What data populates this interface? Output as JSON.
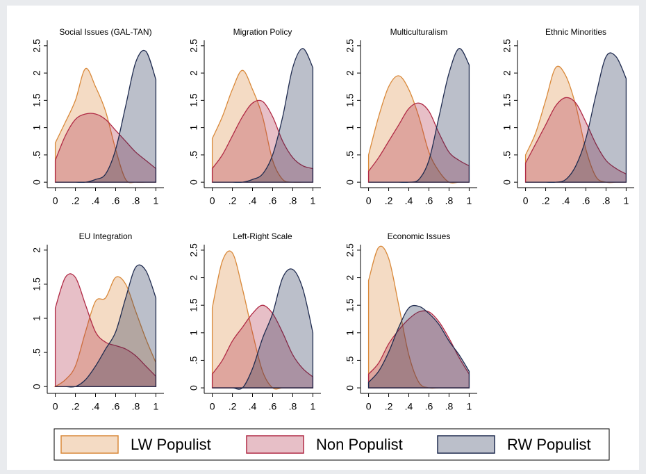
{
  "chart_data": [
    {
      "type": "area",
      "title": "Social Issues (GAL-TAN)",
      "x": [
        0,
        0.1,
        0.2,
        0.3,
        0.4,
        0.5,
        0.6,
        0.7,
        0.8,
        0.9,
        1
      ],
      "xlim": [
        -0.08,
        1.08
      ],
      "ylim": [
        -0.1,
        2.6
      ],
      "xticks": [
        0,
        {
          "value": 0.2,
          "label": ".2"
        },
        {
          "value": 0.4,
          "label": ".4"
        },
        {
          "value": 0.6,
          "label": ".6"
        },
        {
          "value": 0.8,
          "label": ".8"
        },
        1
      ],
      "yticks": [
        0,
        {
          "value": 0.5,
          "label": ".5"
        },
        1,
        1.5,
        2,
        2.5
      ],
      "series": [
        {
          "name": "LW Populist",
          "color": "#d9893a",
          "values": [
            0.72,
            1.1,
            1.5,
            2.08,
            1.75,
            1.3,
            0.6,
            0.05,
            0,
            0,
            0
          ]
        },
        {
          "name": "Non Populist",
          "color": "#b02a45",
          "values": [
            0.4,
            0.85,
            1.15,
            1.25,
            1.25,
            1.15,
            0.95,
            0.75,
            0.55,
            0.4,
            0.25
          ]
        },
        {
          "name": "RW Populist",
          "color": "#1f2b4f",
          "values": [
            0,
            0,
            0,
            0,
            0.05,
            0.15,
            0.6,
            1.4,
            2.2,
            2.4,
            1.88
          ]
        }
      ]
    },
    {
      "type": "area",
      "title": "Migration Policy",
      "x": [
        0,
        0.1,
        0.2,
        0.3,
        0.4,
        0.5,
        0.6,
        0.7,
        0.8,
        0.9,
        1
      ],
      "xlim": [
        -0.08,
        1.08
      ],
      "ylim": [
        -0.1,
        2.6
      ],
      "xticks": [
        0,
        {
          "value": 0.2,
          "label": ".2"
        },
        {
          "value": 0.4,
          "label": ".4"
        },
        {
          "value": 0.6,
          "label": ".6"
        },
        {
          "value": 0.8,
          "label": ".8"
        },
        1
      ],
      "yticks": [
        0,
        {
          "value": 0.5,
          "label": ".5"
        },
        1,
        1.5,
        2,
        2.5
      ],
      "series": [
        {
          "name": "LW Populist",
          "color": "#d9893a",
          "values": [
            0.8,
            1.2,
            1.7,
            2.05,
            1.7,
            1.2,
            0.4,
            0.05,
            0,
            0,
            0
          ]
        },
        {
          "name": "Non Populist",
          "color": "#b02a45",
          "values": [
            0.25,
            0.5,
            0.85,
            1.2,
            1.45,
            1.48,
            1.2,
            0.75,
            0.45,
            0.3,
            0.25
          ]
        },
        {
          "name": "RW Populist",
          "color": "#1f2b4f",
          "values": [
            0,
            0,
            0,
            0,
            0.05,
            0.15,
            0.5,
            1.2,
            2.1,
            2.45,
            2.1
          ]
        }
      ]
    },
    {
      "type": "area",
      "title": "Multiculturalism",
      "x": [
        0,
        0.1,
        0.2,
        0.3,
        0.4,
        0.5,
        0.6,
        0.7,
        0.8,
        0.9,
        1
      ],
      "xlim": [
        -0.08,
        1.08
      ],
      "ylim": [
        -0.1,
        2.6
      ],
      "xticks": [
        0,
        {
          "value": 0.2,
          "label": ".2"
        },
        {
          "value": 0.4,
          "label": ".4"
        },
        {
          "value": 0.6,
          "label": ".6"
        },
        {
          "value": 0.8,
          "label": ".8"
        },
        1
      ],
      "yticks": [
        0,
        {
          "value": 0.5,
          "label": ".5"
        },
        1,
        1.5,
        2,
        2.5
      ],
      "series": [
        {
          "name": "LW Populist",
          "color": "#d9893a",
          "values": [
            0.5,
            1.2,
            1.75,
            1.95,
            1.7,
            1.2,
            0.55,
            0.2,
            0,
            0,
            0
          ]
        },
        {
          "name": "Non Populist",
          "color": "#b02a45",
          "values": [
            0.2,
            0.45,
            0.75,
            1.05,
            1.35,
            1.45,
            1.3,
            0.9,
            0.55,
            0.4,
            0.3
          ]
        },
        {
          "name": "RW Populist",
          "color": "#1f2b4f",
          "values": [
            0,
            0,
            0,
            0,
            0,
            0.05,
            0.4,
            1.2,
            2.0,
            2.45,
            2.15
          ]
        }
      ]
    },
    {
      "type": "area",
      "title": "Ethnic Minorities",
      "x": [
        0,
        0.1,
        0.2,
        0.3,
        0.4,
        0.5,
        0.6,
        0.7,
        0.8,
        0.9,
        1
      ],
      "xlim": [
        -0.08,
        1.08
      ],
      "ylim": [
        -0.1,
        2.6
      ],
      "xticks": [
        0,
        {
          "value": 0.2,
          "label": ".2"
        },
        {
          "value": 0.4,
          "label": ".4"
        },
        {
          "value": 0.6,
          "label": ".6"
        },
        {
          "value": 0.8,
          "label": ".8"
        },
        1
      ],
      "yticks": [
        0,
        {
          "value": 0.5,
          "label": ".5"
        },
        1,
        1.5,
        2,
        2.5
      ],
      "series": [
        {
          "name": "LW Populist",
          "color": "#d9893a",
          "values": [
            0.5,
            0.9,
            1.5,
            2.1,
            1.95,
            1.4,
            0.6,
            0.1,
            0,
            0,
            0
          ]
        },
        {
          "name": "Non Populist",
          "color": "#b02a45",
          "values": [
            0.35,
            0.7,
            1.05,
            1.4,
            1.55,
            1.45,
            1.1,
            0.7,
            0.4,
            0.25,
            0.15
          ]
        },
        {
          "name": "RW Populist",
          "color": "#1f2b4f",
          "values": [
            0,
            0,
            0,
            0,
            0.05,
            0.3,
            0.8,
            1.6,
            2.3,
            2.3,
            1.9
          ]
        }
      ]
    },
    {
      "type": "area",
      "title": "EU Integration",
      "x": [
        0,
        0.1,
        0.2,
        0.3,
        0.4,
        0.5,
        0.6,
        0.7,
        0.8,
        0.9,
        1
      ],
      "xlim": [
        -0.08,
        1.08
      ],
      "ylim": [
        -0.1,
        2.08
      ],
      "xticks": [
        0,
        {
          "value": 0.2,
          "label": ".2"
        },
        {
          "value": 0.4,
          "label": ".4"
        },
        {
          "value": 0.6,
          "label": ".6"
        },
        {
          "value": 0.8,
          "label": ".8"
        },
        1
      ],
      "yticks": [
        0,
        {
          "value": 0.5,
          "label": ".5"
        },
        1,
        1.5,
        2
      ],
      "series": [
        {
          "name": "LW Populist",
          "color": "#d9893a",
          "values": [
            0,
            0.1,
            0.3,
            0.8,
            1.25,
            1.3,
            1.6,
            1.5,
            1.1,
            0.7,
            0.35
          ]
        },
        {
          "name": "Non Populist",
          "color": "#b02a45",
          "values": [
            1.15,
            1.6,
            1.6,
            1.2,
            0.8,
            0.65,
            0.6,
            0.55,
            0.45,
            0.3,
            0.15
          ]
        },
        {
          "name": "RW Populist",
          "color": "#1f2b4f",
          "values": [
            0,
            0,
            0,
            0.1,
            0.3,
            0.55,
            0.8,
            1.3,
            1.75,
            1.7,
            1.3
          ]
        }
      ]
    },
    {
      "type": "area",
      "title": "Left-Right Scale",
      "x": [
        0,
        0.1,
        0.2,
        0.3,
        0.4,
        0.5,
        0.6,
        0.7,
        0.8,
        0.9,
        1
      ],
      "xlim": [
        -0.08,
        1.08
      ],
      "ylim": [
        -0.1,
        2.6
      ],
      "xticks": [
        0,
        {
          "value": 0.2,
          "label": ".2"
        },
        {
          "value": 0.4,
          "label": ".4"
        },
        {
          "value": 0.6,
          "label": ".6"
        },
        {
          "value": 0.8,
          "label": ".8"
        },
        1
      ],
      "yticks": [
        0,
        {
          "value": 0.5,
          "label": ".5"
        },
        1,
        1.5,
        2,
        2.5
      ],
      "series": [
        {
          "name": "LW Populist",
          "color": "#d9893a",
          "values": [
            1.45,
            2.3,
            2.45,
            1.8,
            1.0,
            0.3,
            0,
            0,
            0,
            0,
            0
          ]
        },
        {
          "name": "Non Populist",
          "color": "#b02a45",
          "values": [
            0.25,
            0.5,
            0.85,
            1.1,
            1.35,
            1.5,
            1.35,
            1.0,
            0.6,
            0.35,
            0.2
          ]
        },
        {
          "name": "RW Populist",
          "color": "#1f2b4f",
          "values": [
            0,
            0,
            0,
            0,
            0.35,
            0.9,
            1.35,
            2.0,
            2.15,
            1.8,
            1.0
          ]
        }
      ]
    },
    {
      "type": "area",
      "title": "Economic Issues",
      "x": [
        0,
        0.1,
        0.2,
        0.3,
        0.4,
        0.5,
        0.6,
        0.7,
        0.8,
        0.9,
        1
      ],
      "xlim": [
        -0.08,
        1.08
      ],
      "ylim": [
        -0.1,
        2.6
      ],
      "xticks": [
        0,
        {
          "value": 0.2,
          "label": ".2"
        },
        {
          "value": 0.4,
          "label": ".4"
        },
        {
          "value": 0.6,
          "label": ".6"
        },
        {
          "value": 0.8,
          "label": ".8"
        },
        1
      ],
      "yticks": [
        0,
        {
          "value": 0.5,
          "label": ".5"
        },
        1,
        1.5,
        2,
        2.5
      ],
      "series": [
        {
          "name": "LW Populist",
          "color": "#d9893a",
          "values": [
            1.95,
            2.55,
            2.35,
            1.5,
            0.6,
            0.1,
            0,
            0,
            0,
            0,
            0
          ]
        },
        {
          "name": "Non Populist",
          "color": "#b02a45",
          "values": [
            0.25,
            0.45,
            0.8,
            1.05,
            1.25,
            1.38,
            1.38,
            1.2,
            0.9,
            0.55,
            0.25
          ]
        },
        {
          "name": "RW Populist",
          "color": "#1f2b4f",
          "values": [
            0.1,
            0.3,
            0.65,
            1.1,
            1.45,
            1.48,
            1.35,
            1.15,
            0.85,
            0.6,
            0.3
          ]
        }
      ]
    }
  ]
}
